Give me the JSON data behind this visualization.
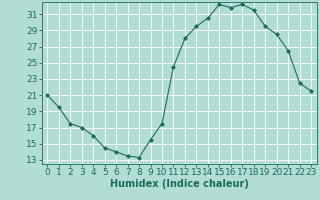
{
  "x": [
    0,
    1,
    2,
    3,
    4,
    5,
    6,
    7,
    8,
    9,
    10,
    11,
    12,
    13,
    14,
    15,
    16,
    17,
    18,
    19,
    20,
    21,
    22,
    23
  ],
  "y": [
    21,
    19.5,
    17.5,
    17,
    16,
    14.5,
    14,
    13.5,
    13.3,
    15.5,
    17.5,
    24.5,
    28.0,
    29.5,
    30.5,
    32.2,
    31.8,
    32.2,
    31.5,
    29.5,
    28.5,
    26.5,
    22.5,
    21.5
  ],
  "line_color": "#1a6b5e",
  "marker": "D",
  "marker_size": 2.0,
  "bg_color": "#b2ddd4",
  "grid_color": "#ffffff",
  "xlabel": "Humidex (Indice chaleur)",
  "yticks": [
    13,
    15,
    17,
    19,
    21,
    23,
    25,
    27,
    29,
    31
  ],
  "xticks": [
    0,
    1,
    2,
    3,
    4,
    5,
    6,
    7,
    8,
    9,
    10,
    11,
    12,
    13,
    14,
    15,
    16,
    17,
    18,
    19,
    20,
    21,
    22,
    23
  ],
  "ylim": [
    12.5,
    32.5
  ],
  "xlim": [
    -0.5,
    23.5
  ],
  "label_fontsize": 7,
  "tick_fontsize": 6.5
}
